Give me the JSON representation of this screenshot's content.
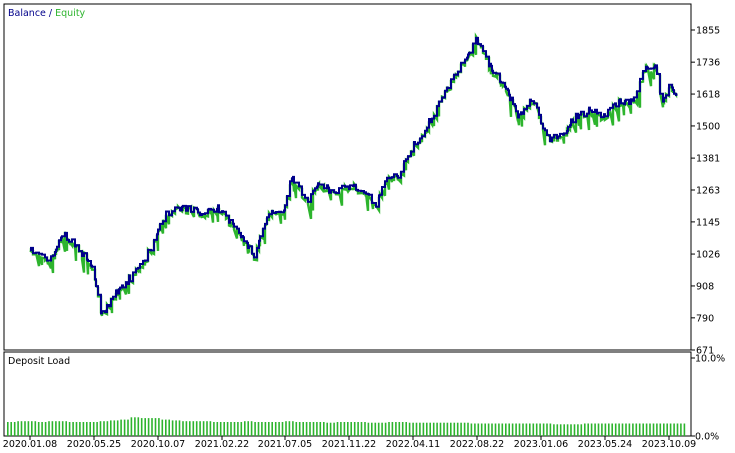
{
  "colors": {
    "balance": "#00008b",
    "equity": "#2db42d",
    "load": "#2db42d",
    "axis": "#000000",
    "background": "#ffffff"
  },
  "upper": {
    "legend": {
      "balance": "Balance",
      "separator": " / ",
      "equity": "Equity"
    },
    "y_ticks": [
      "1855",
      "1736",
      "1618",
      "1500",
      "1381",
      "1263",
      "1145",
      "1026",
      "908",
      "790",
      "671"
    ]
  },
  "lower": {
    "title": "Deposit Load",
    "y_ticks": [
      "10.0%",
      "0.0%"
    ]
  },
  "x_ticks": [
    "2020.01.08",
    "2020.05.25",
    "2020.10.07",
    "2021.02.22",
    "2021.07.05",
    "2021.11.22",
    "2022.04.11",
    "2022.08.22",
    "2023.01.06",
    "2023.05.24",
    "2023.10.09"
  ],
  "chart_data": [
    {
      "type": "line",
      "title": "",
      "series": [
        {
          "name": "Balance",
          "color": "#00008b"
        },
        {
          "name": "Equity",
          "color": "#2db42d"
        }
      ],
      "x_ticks": [
        "2020.01.08",
        "2020.05.25",
        "2020.10.07",
        "2021.02.22",
        "2021.07.05",
        "2021.11.22",
        "2022.04.11",
        "2022.08.22",
        "2023.01.06",
        "2023.05.24",
        "2023.10.09"
      ],
      "ylim": [
        671,
        1900
      ],
      "points": [
        [
          "2020.01.08",
          1040
        ],
        [
          "2020.02.20",
          1000
        ],
        [
          "2020.03.20",
          1100
        ],
        [
          "2020.04.20",
          1050
        ],
        [
          "2020.05.20",
          980
        ],
        [
          "2020.06.10",
          800
        ],
        [
          "2020.07.10",
          880
        ],
        [
          "2020.08.20",
          960
        ],
        [
          "2020.09.20",
          1040
        ],
        [
          "2020.10.20",
          1170
        ],
        [
          "2020.12.01",
          1200
        ],
        [
          "2021.01.10",
          1175
        ],
        [
          "2021.02.10",
          1200
        ],
        [
          "2021.03.10",
          1145
        ],
        [
          "2021.04.10",
          1080
        ],
        [
          "2021.05.01",
          1020
        ],
        [
          "2021.06.01",
          1170
        ],
        [
          "2021.07.01",
          1185
        ],
        [
          "2021.07.20",
          1310
        ],
        [
          "2021.08.20",
          1220
        ],
        [
          "2021.09.20",
          1290
        ],
        [
          "2021.10.20",
          1250
        ],
        [
          "2021.11.20",
          1280
        ],
        [
          "2021.12.20",
          1270
        ],
        [
          "2022.01.20",
          1210
        ],
        [
          "2022.02.10",
          1300
        ],
        [
          "2022.03.10",
          1320
        ],
        [
          "2022.04.10",
          1420
        ],
        [
          "2022.05.10",
          1500
        ],
        [
          "2022.06.10",
          1600
        ],
        [
          "2022.07.10",
          1700
        ],
        [
          "2022.08.20",
          1820
        ],
        [
          "2022.09.20",
          1720
        ],
        [
          "2022.10.20",
          1650
        ],
        [
          "2022.11.20",
          1530
        ],
        [
          "2022.12.20",
          1600
        ],
        [
          "2023.01.20",
          1450
        ],
        [
          "2023.02.20",
          1470
        ],
        [
          "2023.03.20",
          1530
        ],
        [
          "2023.04.20",
          1560
        ],
        [
          "2023.05.20",
          1530
        ],
        [
          "2023.06.20",
          1590
        ],
        [
          "2023.07.20",
          1590
        ],
        [
          "2023.08.20",
          1720
        ],
        [
          "2023.09.10",
          1720
        ],
        [
          "2023.09.25",
          1580
        ],
        [
          "2023.10.09",
          1640
        ],
        [
          "2023.10.25",
          1620
        ]
      ]
    },
    {
      "type": "bar",
      "title": "Deposit Load",
      "ylim": [
        0,
        10
      ],
      "ylabel": "%",
      "values": [
        1.8,
        1.9,
        1.9,
        1.8,
        1.9,
        1.9,
        1.8,
        1.8,
        1.8,
        1.9,
        2.0,
        2.1,
        2.4,
        2.3,
        2.3,
        2.1,
        2.0,
        1.9,
        1.9,
        1.9,
        1.8,
        1.8,
        1.8,
        1.9,
        1.8,
        1.8,
        1.8,
        1.9,
        1.8,
        1.8,
        1.8,
        1.7,
        1.8,
        1.8,
        1.8,
        1.7,
        1.7,
        1.8,
        1.8,
        1.7,
        1.7,
        1.7,
        1.7,
        1.7,
        1.7,
        1.6,
        1.6,
        1.6,
        1.6,
        1.6,
        1.6,
        1.6,
        1.6,
        1.5,
        1.5,
        1.5,
        1.6,
        1.6,
        1.6,
        1.6,
        1.6,
        1.6,
        1.6,
        1.6,
        1.6,
        1.6
      ]
    }
  ]
}
